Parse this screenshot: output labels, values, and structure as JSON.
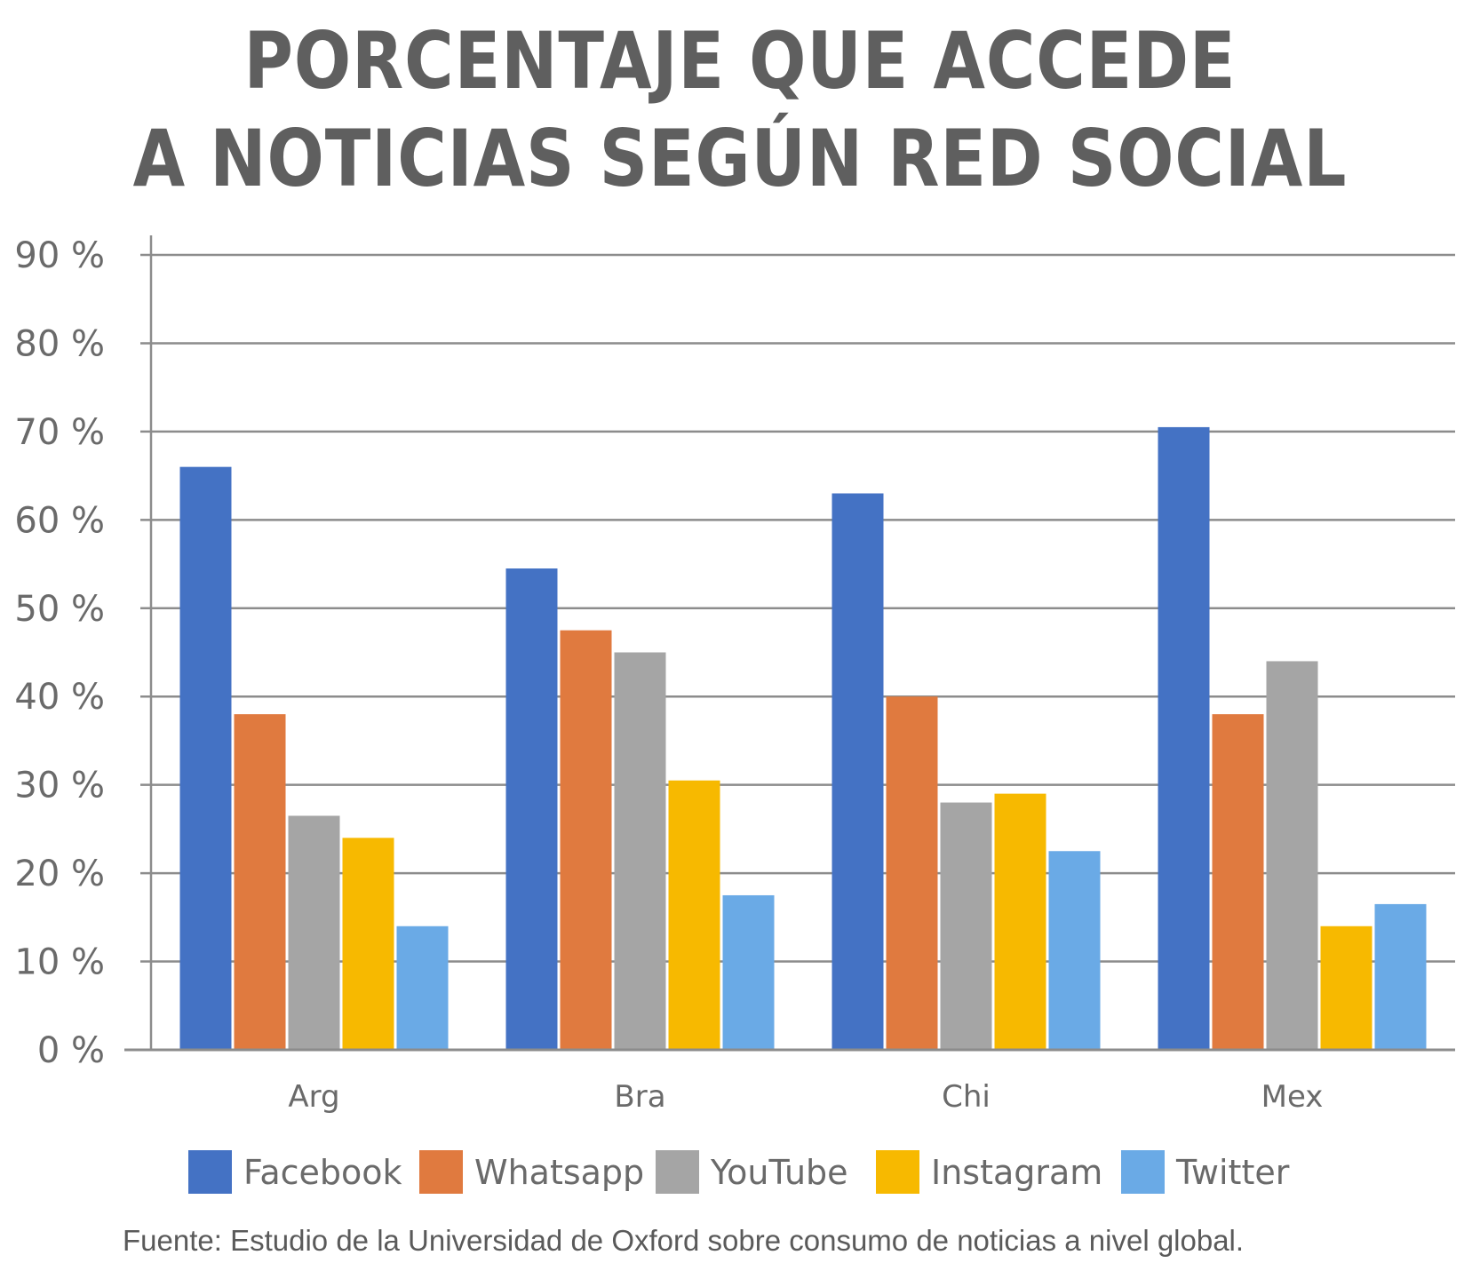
{
  "title_lines": [
    "PORCENTAJE QUE ACCEDE",
    "A NOTICIAS SEGÚN RED SOCIAL"
  ],
  "source": "Fuente: Estudio de la Universidad de Oxford sobre consumo de noticias a nivel global.",
  "chart_data": {
    "type": "bar",
    "title": "PORCENTAJE QUE ACCEDE A NOTICIAS SEGÚN RED SOCIAL",
    "categories": [
      "Arg",
      "Bra",
      "Chi",
      "Mex"
    ],
    "yticks": [
      "0 %",
      "10 %",
      "20 %",
      "30 %",
      "40 %",
      "50 %",
      "60 %",
      "70 %",
      "80 %",
      "90 %"
    ],
    "ylim": [
      0,
      90
    ],
    "grid": true,
    "legend_position": "bottom",
    "series": [
      {
        "name": "Facebook",
        "color": "#4472c4",
        "values": [
          66,
          54.5,
          63,
          70.5
        ]
      },
      {
        "name": "Whatsapp",
        "color": "#e07a3f",
        "values": [
          38,
          47.5,
          40,
          38
        ]
      },
      {
        "name": "YouTube",
        "color": "#a5a5a5",
        "values": [
          26.5,
          45,
          28,
          44
        ]
      },
      {
        "name": "Instagram",
        "color": "#f7b900",
        "values": [
          24,
          30.5,
          29,
          14
        ]
      },
      {
        "name": "Twitter",
        "color": "#6aaae6",
        "values": [
          14,
          17.5,
          22.5,
          16.5
        ]
      }
    ]
  }
}
